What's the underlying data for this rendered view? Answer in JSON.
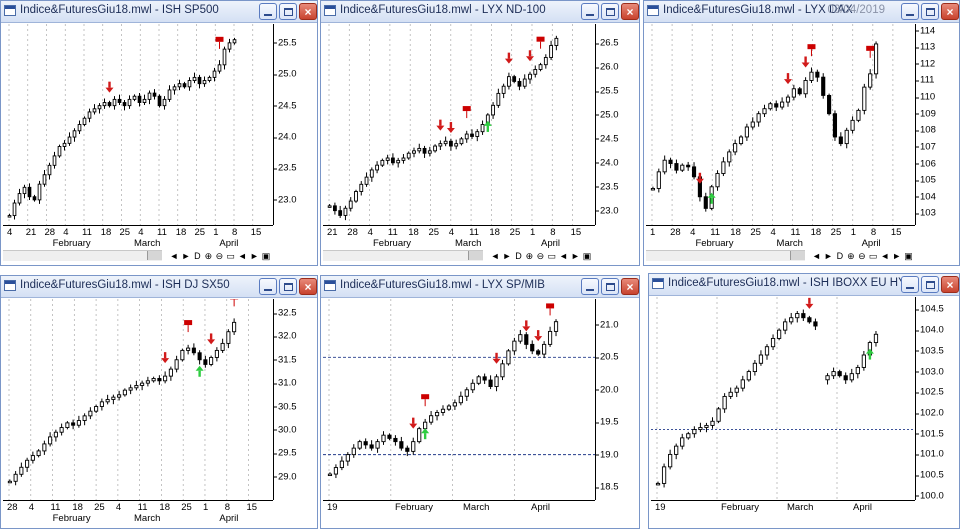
{
  "colors": {
    "title_gradient_top": "#eef3fb",
    "title_gradient_bottom": "#d4e0f4",
    "border": "#7a96c8",
    "up_arrow": "#2ecc40",
    "down_arrow": "#d11a1a",
    "signal_badge": "#cc0000",
    "grid": "#aaaaaa"
  },
  "icons": {
    "window": "window-icon",
    "minimize": "minimize-icon",
    "maximize": "maximize-icon",
    "close": "close-icon"
  },
  "nav_labels": {
    "prev": "◄",
    "next": "►",
    "period": "D",
    "zoom_in": "⊕",
    "zoom_out": "⊖",
    "fit": "▭",
    "scroll_left": "◄",
    "scroll_right": "►",
    "settings": "▣"
  },
  "windows": [
    {
      "title": "Indice&FuturesGiu18.mwl - ISH SP500",
      "date": "",
      "y_ticks": [
        "25.5",
        "25.0",
        "24.5",
        "24.0",
        "23.5",
        "23.0"
      ],
      "x_days": [
        "4",
        "21",
        "28",
        "4",
        "11",
        "18",
        "25",
        "4",
        "11",
        "18",
        "25",
        "1",
        "8",
        "15"
      ],
      "x_months": [
        "February",
        "March",
        "April"
      ],
      "price_range": [
        22.6,
        25.8
      ],
      "prices": [
        22.75,
        22.95,
        23.1,
        23.2,
        23.05,
        23.0,
        23.25,
        23.4,
        23.55,
        23.7,
        23.85,
        23.9,
        24.0,
        24.1,
        24.2,
        24.3,
        24.4,
        24.45,
        24.5,
        24.55,
        24.5,
        24.6,
        24.55,
        24.5,
        24.6,
        24.65,
        24.55,
        24.6,
        24.7,
        24.65,
        24.5,
        24.6,
        24.75,
        24.8,
        24.85,
        24.8,
        24.9,
        24.95,
        24.85,
        24.9,
        24.95,
        25.05,
        25.15,
        25.4,
        25.5,
        25.55
      ],
      "signals": [
        {
          "i": 20,
          "dir": "down"
        },
        {
          "i": 42,
          "dir": "badge"
        }
      ]
    },
    {
      "title": "Indice&FuturesGiu18.mwl - LYX ND-100",
      "date": "",
      "y_ticks": [
        "26.5",
        "26.0",
        "25.5",
        "25.0",
        "24.5",
        "24.0",
        "23.5",
        "23.0"
      ],
      "x_days": [
        "21",
        "28",
        "4",
        "11",
        "18",
        "25",
        "4",
        "11",
        "18",
        "25",
        "1",
        "8",
        "15"
      ],
      "x_months": [
        "February",
        "March",
        "April"
      ],
      "price_range": [
        22.7,
        26.9
      ],
      "prices": [
        23.1,
        23.0,
        22.9,
        23.05,
        23.2,
        23.4,
        23.55,
        23.7,
        23.85,
        23.95,
        24.05,
        24.1,
        24.0,
        24.05,
        24.1,
        24.2,
        24.25,
        24.3,
        24.2,
        24.25,
        24.35,
        24.4,
        24.45,
        24.35,
        24.4,
        24.5,
        24.6,
        24.55,
        24.65,
        24.8,
        25.0,
        25.2,
        25.45,
        25.6,
        25.8,
        25.7,
        25.6,
        25.75,
        25.85,
        25.95,
        26.05,
        26.2,
        26.45,
        26.6
      ],
      "signals": [
        {
          "i": 21,
          "dir": "down"
        },
        {
          "i": 23,
          "dir": "down"
        },
        {
          "i": 26,
          "dir": "badge"
        },
        {
          "i": 30,
          "dir": "up"
        },
        {
          "i": 34,
          "dir": "down"
        },
        {
          "i": 38,
          "dir": "down"
        },
        {
          "i": 40,
          "dir": "badge"
        }
      ]
    },
    {
      "title": "Indice&FuturesGiu18.mwl - LYX DAX",
      "date": "03/04/2019",
      "y_ticks": [
        "114",
        "113",
        "112",
        "111",
        "110",
        "109",
        "108",
        "107",
        "106",
        "105",
        "104",
        "103"
      ],
      "x_days": [
        "1",
        "28",
        "4",
        "11",
        "18",
        "25",
        "4",
        "11",
        "18",
        "25",
        "1",
        "8",
        "15"
      ],
      "x_months": [
        "February",
        "March",
        "April"
      ],
      "price_range": [
        102.3,
        114.4
      ],
      "prices": [
        104.5,
        105.5,
        106.2,
        106.0,
        105.6,
        105.9,
        105.8,
        105.2,
        104.0,
        103.3,
        104.6,
        105.4,
        106.1,
        106.7,
        107.2,
        107.6,
        108.2,
        108.5,
        109.0,
        109.3,
        109.6,
        109.4,
        109.7,
        110.0,
        110.5,
        110.2,
        111.0,
        111.5,
        111.2,
        110.1,
        109.0,
        107.6,
        107.2,
        108.0,
        108.6,
        109.2,
        110.6,
        111.4,
        113.2
      ],
      "signals": [
        {
          "i": 8,
          "dir": "down"
        },
        {
          "i": 10,
          "dir": "up"
        },
        {
          "i": 23,
          "dir": "down"
        },
        {
          "i": 26,
          "dir": "down"
        },
        {
          "i": 27,
          "dir": "badge"
        },
        {
          "i": 37,
          "dir": "badge"
        }
      ]
    },
    {
      "title": "Indice&FuturesGiu18.mwl - ISH DJ SX50",
      "date": "",
      "y_ticks": [
        "32.5",
        "32.0",
        "31.5",
        "31.0",
        "30.5",
        "30.0",
        "29.5",
        "29.0"
      ],
      "x_days": [
        "28",
        "4",
        "11",
        "18",
        "25",
        "4",
        "11",
        "18",
        "25",
        "1",
        "8",
        "15"
      ],
      "x_months": [
        "February",
        "March",
        "April"
      ],
      "price_range": [
        28.5,
        32.8
      ],
      "prices": [
        28.9,
        29.05,
        29.2,
        29.35,
        29.45,
        29.55,
        29.7,
        29.85,
        29.95,
        30.05,
        30.15,
        30.1,
        30.2,
        30.3,
        30.4,
        30.5,
        30.6,
        30.65,
        30.7,
        30.75,
        30.85,
        30.9,
        30.95,
        31.0,
        31.05,
        31.1,
        31.05,
        31.15,
        31.3,
        31.5,
        31.7,
        31.75,
        31.65,
        31.5,
        31.4,
        31.55,
        31.7,
        31.85,
        32.1,
        32.3
      ],
      "signals": [
        {
          "i": 27,
          "dir": "down"
        },
        {
          "i": 31,
          "dir": "badge"
        },
        {
          "i": 33,
          "dir": "up"
        },
        {
          "i": 35,
          "dir": "down"
        },
        {
          "i": 39,
          "dir": "badge"
        }
      ]
    },
    {
      "title": "Indice&FuturesGiu18.mwl - LYX SP/MIB",
      "date": "",
      "y_ticks": [
        "21.0",
        "20.5",
        "20.0",
        "19.5",
        "19.0",
        "18.5"
      ],
      "x_days": [
        "19",
        "February",
        "March",
        "April"
      ],
      "x_months": [],
      "price_range": [
        18.3,
        21.4
      ],
      "prices": [
        18.7,
        18.8,
        18.9,
        19.0,
        19.1,
        19.2,
        19.15,
        19.1,
        19.2,
        19.3,
        19.25,
        19.2,
        19.1,
        19.05,
        19.2,
        19.4,
        19.5,
        19.6,
        19.65,
        19.7,
        19.75,
        19.8,
        19.9,
        20.0,
        20.1,
        20.2,
        20.15,
        20.05,
        20.2,
        20.4,
        20.6,
        20.75,
        20.85,
        20.7,
        20.6,
        20.55,
        20.7,
        20.9,
        21.05
      ],
      "signals": [
        {
          "i": 14,
          "dir": "down"
        },
        {
          "i": 16,
          "dir": "up"
        },
        {
          "i": 16,
          "dir": "badge"
        },
        {
          "i": 28,
          "dir": "down"
        },
        {
          "i": 33,
          "dir": "down"
        },
        {
          "i": 35,
          "dir": "down"
        },
        {
          "i": 37,
          "dir": "badge"
        }
      ]
    },
    {
      "title": "Indice&FuturesGiu18.mwl - ISH IBOXX EU HY",
      "date": "",
      "y_ticks": [
        "104.5",
        "104.0",
        "103.5",
        "103.0",
        "102.5",
        "102.0",
        "101.5",
        "101.0",
        "100.5",
        "100.0"
      ],
      "x_days": [
        "19",
        "February",
        "March",
        "April"
      ],
      "x_months": [],
      "price_range": [
        99.9,
        104.8
      ],
      "prices": [
        100.3,
        100.7,
        101.0,
        101.2,
        101.4,
        101.5,
        101.6,
        101.65,
        101.7,
        101.8,
        102.1,
        102.4,
        102.5,
        102.6,
        102.8,
        103.0,
        103.2,
        103.4,
        103.6,
        103.8,
        104.0,
        104.2,
        104.3,
        104.4,
        104.3,
        104.2,
        104.1,
        null,
        102.9,
        103.0,
        102.9,
        102.8,
        102.95,
        103.1,
        103.4,
        103.7,
        103.9
      ],
      "signals": [
        {
          "i": 25,
          "dir": "down"
        },
        {
          "i": 35,
          "dir": "up"
        }
      ]
    }
  ]
}
